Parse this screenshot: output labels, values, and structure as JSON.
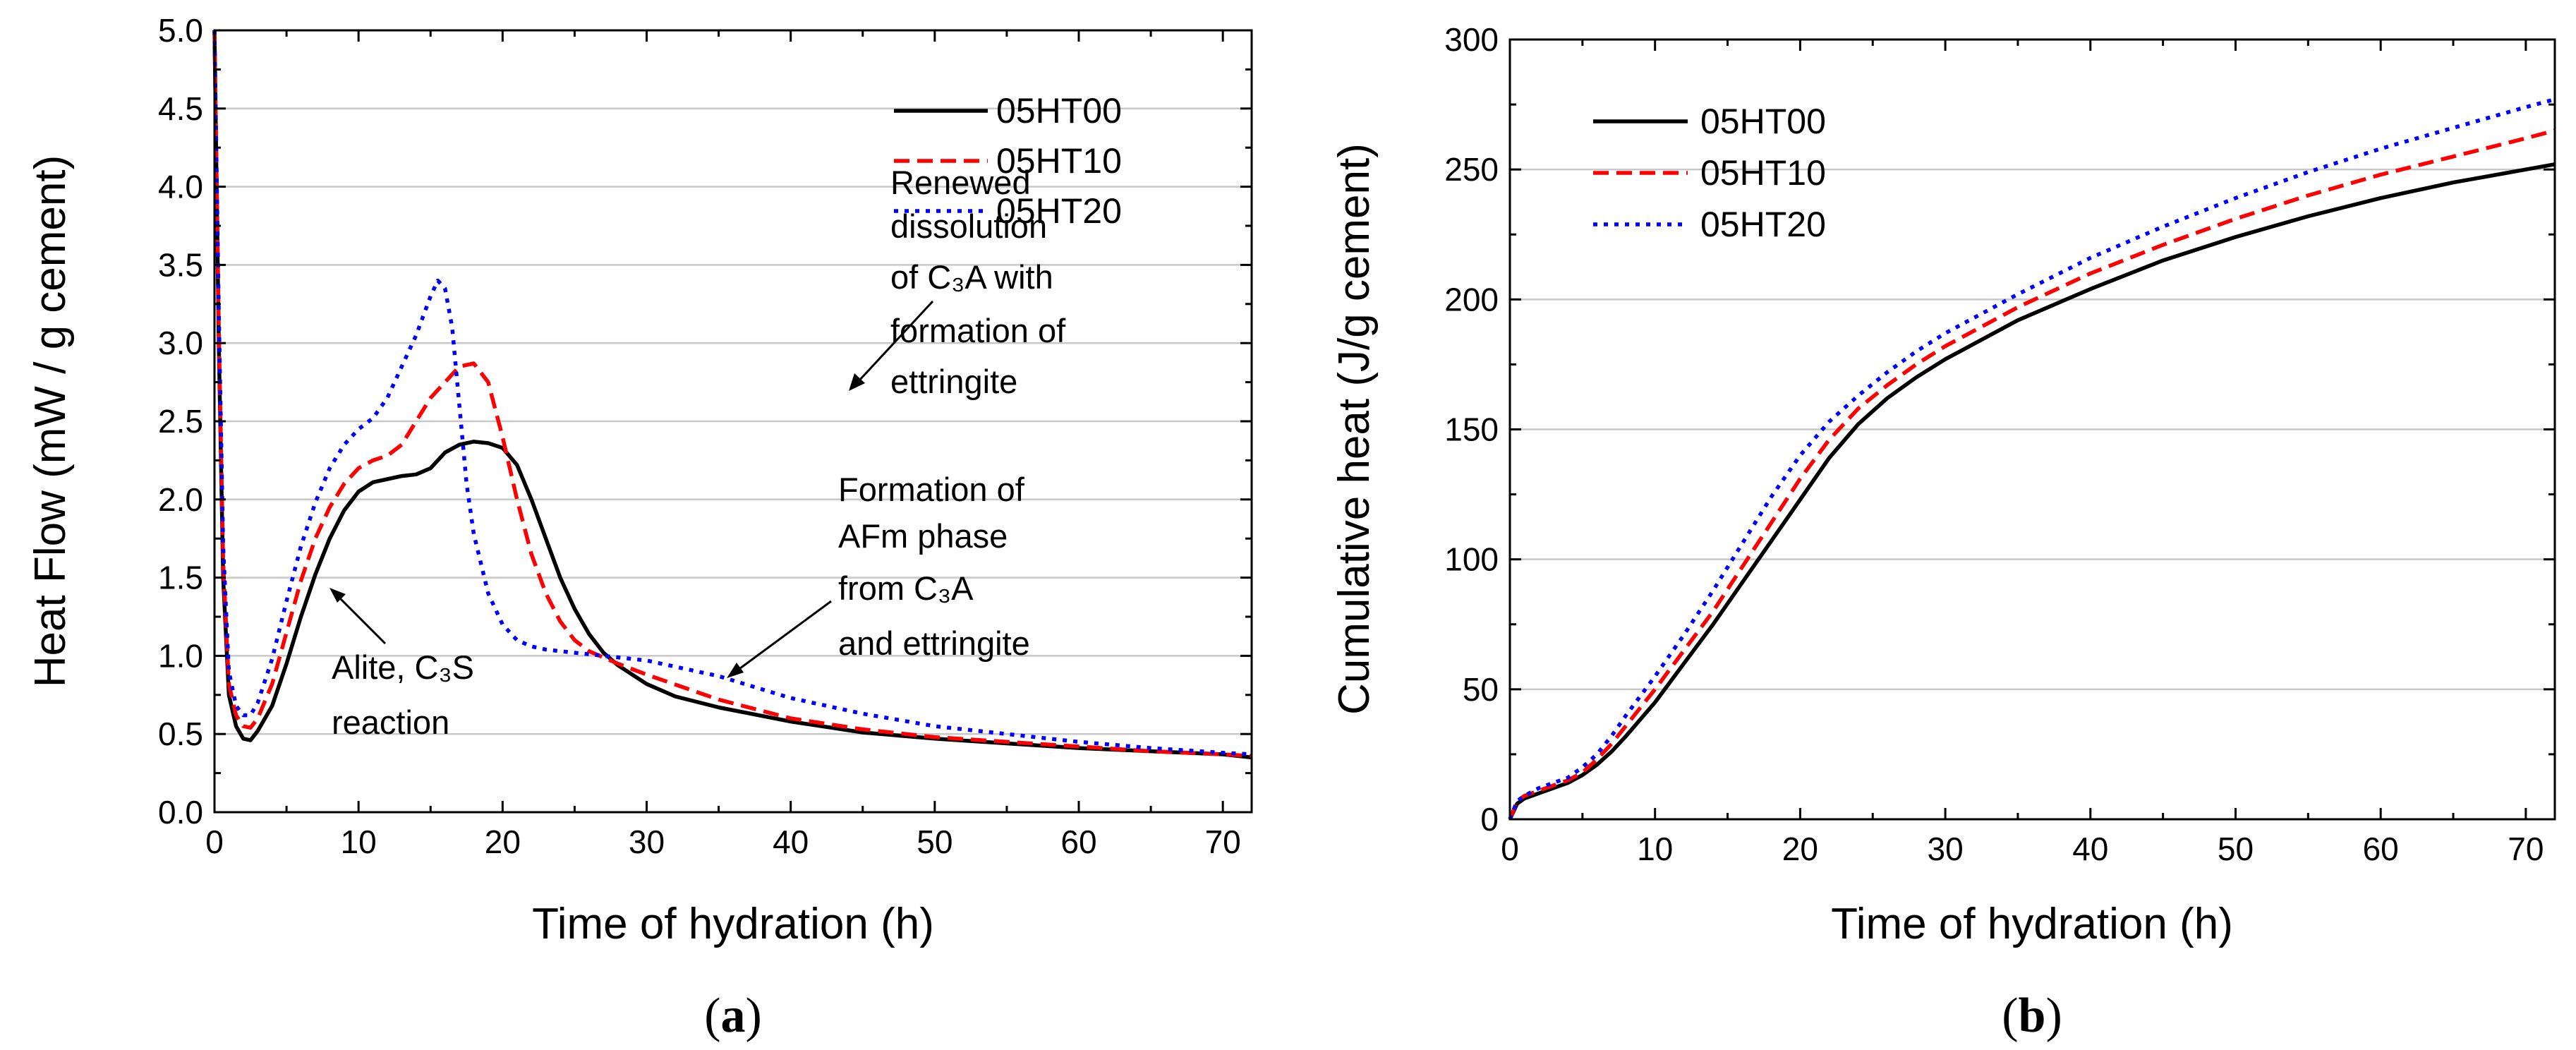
{
  "colors": {
    "05HT00": "#000000",
    "05HT10": "#ff0000",
    "05HT20": "#0000ff",
    "grid": "#c8c8c8"
  },
  "chart_data": [
    {
      "id": "a",
      "type": "line",
      "panel_label": "a",
      "xlabel": "Time of hydration (h)",
      "ylabel": "Heat Flow (mW / g cement)",
      "xlim": [
        0,
        72
      ],
      "ylim": [
        0,
        5
      ],
      "xticks": [
        0,
        10,
        20,
        30,
        40,
        50,
        60,
        70
      ],
      "yticks": [
        0.0,
        0.5,
        1.0,
        1.5,
        2.0,
        2.5,
        3.0,
        3.5,
        4.0,
        4.5,
        5.0
      ],
      "ytick_labels": [
        "0.0",
        "0.5",
        "1.0",
        "1.5",
        "2.0",
        "2.5",
        "3.0",
        "3.5",
        "4.0",
        "4.5",
        "5.0"
      ],
      "grid": "horizontal",
      "legend_position": "top-right",
      "legend": [
        "05HT00",
        "05HT10",
        "05HT20"
      ],
      "series": [
        {
          "name": "05HT00",
          "style": "solid",
          "x": [
            0,
            0.3,
            0.6,
            1.0,
            1.5,
            2.0,
            2.5,
            3.0,
            4.0,
            5.0,
            6.0,
            7.0,
            8.0,
            9.0,
            10.0,
            11.0,
            12.0,
            13.0,
            14.0,
            15.0,
            16.0,
            17.0,
            18.0,
            19.0,
            20.0,
            21.0,
            22.0,
            23.0,
            24.0,
            25.0,
            26.0,
            27.0,
            28.0,
            30.0,
            32.0,
            35.0,
            40.0,
            45.0,
            50.0,
            55.0,
            60.0,
            65.0,
            70.0,
            72.0
          ],
          "y": [
            5.0,
            3.0,
            1.5,
            0.75,
            0.55,
            0.47,
            0.46,
            0.52,
            0.68,
            0.95,
            1.25,
            1.52,
            1.75,
            1.93,
            2.05,
            2.11,
            2.13,
            2.15,
            2.16,
            2.2,
            2.3,
            2.35,
            2.37,
            2.36,
            2.33,
            2.22,
            2.0,
            1.75,
            1.5,
            1.3,
            1.14,
            1.02,
            0.94,
            0.82,
            0.74,
            0.67,
            0.58,
            0.51,
            0.47,
            0.44,
            0.41,
            0.39,
            0.37,
            0.35
          ]
        },
        {
          "name": "05HT10",
          "style": "dashed",
          "x": [
            0,
            0.3,
            0.6,
            1.0,
            1.5,
            2.0,
            2.5,
            3.0,
            4.0,
            5.0,
            6.0,
            7.0,
            8.0,
            9.0,
            10.0,
            11.0,
            12.0,
            13.0,
            14.0,
            15.0,
            16.0,
            17.0,
            18.0,
            19.0,
            20.0,
            21.0,
            22.0,
            23.0,
            24.0,
            25.0,
            26.0,
            28.0,
            30.0,
            35.0,
            40.0,
            45.0,
            50.0,
            55.0,
            60.0,
            65.0,
            70.0,
            72.0
          ],
          "y": [
            5.0,
            3.1,
            1.6,
            0.82,
            0.62,
            0.55,
            0.54,
            0.6,
            0.82,
            1.15,
            1.48,
            1.75,
            1.95,
            2.1,
            2.2,
            2.25,
            2.28,
            2.35,
            2.5,
            2.65,
            2.75,
            2.85,
            2.87,
            2.75,
            2.4,
            2.0,
            1.65,
            1.4,
            1.22,
            1.1,
            1.03,
            0.95,
            0.88,
            0.72,
            0.6,
            0.53,
            0.48,
            0.45,
            0.42,
            0.39,
            0.37,
            0.36
          ]
        },
        {
          "name": "05HT20",
          "style": "dotted",
          "x": [
            0,
            0.3,
            0.6,
            1.0,
            1.5,
            2.0,
            2.5,
            3.0,
            4.0,
            5.0,
            6.0,
            7.0,
            8.0,
            9.0,
            10.0,
            11.0,
            12.0,
            13.0,
            14.0,
            15.0,
            15.5,
            16.0,
            16.5,
            17.0,
            17.5,
            18.0,
            19.0,
            20.0,
            21.0,
            22.0,
            23.0,
            24.0,
            25.0,
            26.0,
            28.0,
            30.0,
            35.0,
            40.0,
            45.0,
            50.0,
            55.0,
            60.0,
            65.0,
            70.0,
            72.0
          ],
          "y": [
            5.0,
            3.2,
            1.7,
            0.9,
            0.68,
            0.62,
            0.62,
            0.7,
            0.98,
            1.35,
            1.7,
            1.98,
            2.2,
            2.35,
            2.45,
            2.52,
            2.65,
            2.85,
            3.05,
            3.3,
            3.4,
            3.35,
            3.1,
            2.6,
            2.1,
            1.78,
            1.4,
            1.2,
            1.1,
            1.06,
            1.04,
            1.03,
            1.02,
            1.01,
            0.99,
            0.97,
            0.87,
            0.73,
            0.63,
            0.55,
            0.5,
            0.45,
            0.41,
            0.38,
            0.37
          ]
        }
      ],
      "annotations": [
        {
          "lines": [
            "Renewed",
            "dissolution",
            "of C₃A with",
            "formation of",
            "ettringite"
          ]
        },
        {
          "lines": [
            "Formation of",
            "AFm phase",
            "from C₃A",
            "and ettringite"
          ]
        },
        {
          "lines": [
            "Alite, C₃S",
            "reaction"
          ]
        }
      ]
    },
    {
      "id": "b",
      "type": "line",
      "panel_label": "b",
      "xlabel": "Time of hydration (h)",
      "ylabel": "Cumulative heat (J/g cement)",
      "xlim": [
        0,
        72
      ],
      "ylim": [
        0,
        300
      ],
      "xticks": [
        0,
        10,
        20,
        30,
        40,
        50,
        60,
        70
      ],
      "yticks": [
        0,
        50,
        100,
        150,
        200,
        250,
        300
      ],
      "ytick_labels": [
        "0",
        "50",
        "100",
        "150",
        "200",
        "250",
        "300"
      ],
      "grid": "horizontal",
      "legend_position": "top-left",
      "legend": [
        "05HT00",
        "05HT10",
        "05HT20"
      ],
      "series": [
        {
          "name": "05HT00",
          "style": "solid",
          "x": [
            0,
            0.5,
            1,
            2,
            3,
            4,
            5,
            6,
            7,
            8,
            10,
            12,
            14,
            16,
            18,
            20,
            22,
            24,
            26,
            28,
            30,
            35,
            40,
            45,
            50,
            55,
            60,
            65,
            70,
            72
          ],
          "y": [
            0,
            6,
            8,
            10,
            12,
            14,
            17,
            21,
            26,
            32,
            45,
            60,
            75,
            91,
            107,
            123,
            139,
            152,
            162,
            170,
            177,
            192,
            204,
            215,
            224,
            232,
            239,
            245,
            250,
            252
          ]
        },
        {
          "name": "05HT10",
          "style": "dashed",
          "x": [
            0,
            0.5,
            1,
            2,
            3,
            4,
            5,
            6,
            7,
            8,
            10,
            12,
            14,
            16,
            18,
            20,
            22,
            24,
            26,
            28,
            30,
            35,
            40,
            45,
            50,
            55,
            60,
            65,
            70,
            72
          ],
          "y": [
            0,
            7,
            9,
            11,
            13,
            15,
            18,
            23,
            29,
            36,
            50,
            65,
            80,
            97,
            114,
            131,
            146,
            158,
            167,
            175,
            182,
            197,
            210,
            221,
            231,
            240,
            248,
            255,
            262,
            265
          ]
        },
        {
          "name": "05HT20",
          "style": "dotted",
          "x": [
            0,
            0.5,
            1,
            2,
            3,
            4,
            5,
            6,
            7,
            8,
            10,
            12,
            14,
            16,
            18,
            20,
            22,
            24,
            26,
            28,
            30,
            35,
            40,
            45,
            50,
            55,
            60,
            65,
            70,
            72
          ],
          "y": [
            0,
            7,
            9,
            12,
            14,
            16,
            20,
            25,
            32,
            40,
            55,
            71,
            88,
            106,
            124,
            140,
            153,
            163,
            172,
            180,
            187,
            202,
            216,
            228,
            239,
            249,
            258,
            266,
            274,
            277
          ]
        }
      ]
    }
  ]
}
